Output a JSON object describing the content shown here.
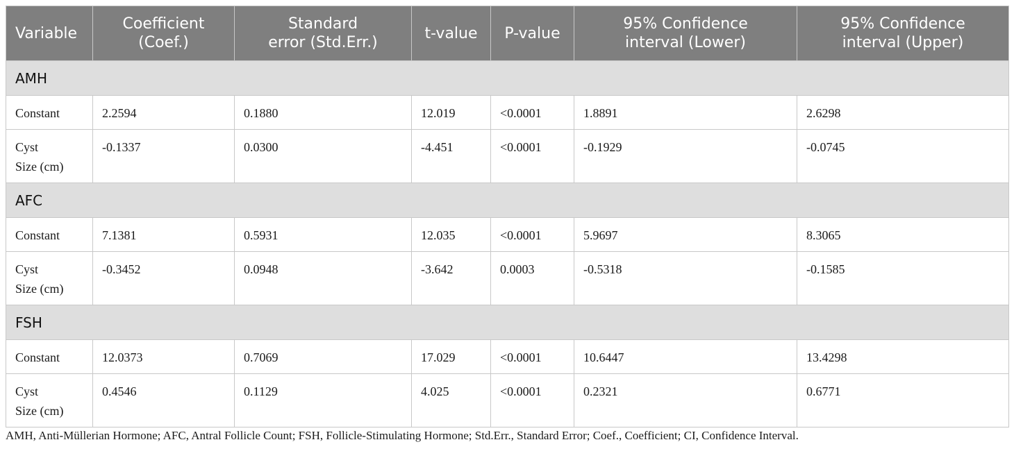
{
  "table": {
    "headers": [
      "Variable",
      "Coefficient\n(Coef.)",
      "Standard\nerror (Std.Err.)",
      "t-value",
      "P-value",
      "95% Confidence\ninterval (Lower)",
      "95% Confidence\ninterval (Upper)"
    ],
    "groups": [
      {
        "label": "AMH",
        "rows": [
          [
            "Constant",
            "2.2594",
            "0.1880",
            "12.019",
            "<0.0001",
            "1.8891",
            "2.6298"
          ],
          [
            "Cyst\nSize (cm)",
            "-0.1337",
            "0.0300",
            "-4.451",
            "<0.0001",
            "-0.1929",
            "-0.0745"
          ]
        ]
      },
      {
        "label": "AFC",
        "rows": [
          [
            "Constant",
            "7.1381",
            "0.5931",
            "12.035",
            "<0.0001",
            "5.9697",
            "8.3065"
          ],
          [
            "Cyst\nSize (cm)",
            "-0.3452",
            "0.0948",
            "-3.642",
            "0.0003",
            "-0.5318",
            "-0.1585"
          ]
        ]
      },
      {
        "label": "FSH",
        "rows": [
          [
            "Constant",
            "12.0373",
            "0.7069",
            "17.029",
            "<0.0001",
            "10.6447",
            "13.4298"
          ],
          [
            "Cyst\nSize (cm)",
            "0.4546",
            "0.1129",
            "4.025",
            "<0.0001",
            "0.2321",
            "0.6771"
          ]
        ]
      }
    ]
  },
  "footnote": "AMH, Anti-Müllerian Hormone; AFC, Antral Follicle Count; FSH, Follicle-Stimulating Hormone; Std.Err., Standard Error; Coef., Coefficient; CI, Confidence Interval."
}
